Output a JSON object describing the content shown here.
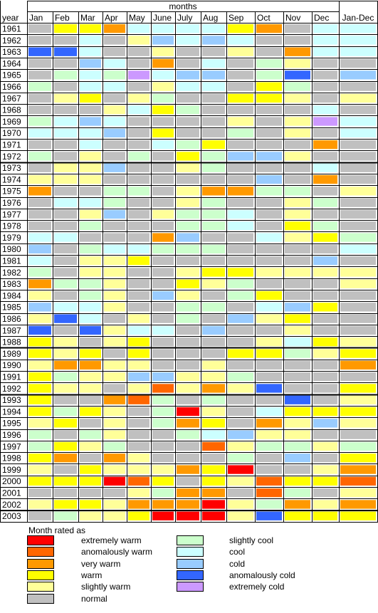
{
  "chart_data": {
    "type": "heatmap",
    "title": "months",
    "row_header": "year",
    "columns": [
      "Jan",
      "Feb",
      "Mar",
      "Apr",
      "May",
      "June",
      "July",
      "Aug",
      "Sep",
      "Oct",
      "Nov",
      "Dec",
      "Jan-Dec"
    ],
    "colors": {
      "EW": "#ff0000",
      "AW": "#ff6600",
      "VW": "#ff9900",
      "W": "#ffff00",
      "SW": "#ffff99",
      "N": "#c0c0c0",
      "SC": "#ccffcc",
      "C": "#ccffff",
      "CD": "#99ccff",
      "AC": "#3366ff",
      "EC": "#cc99ff"
    },
    "rows": [
      {
        "year": "1961",
        "values": [
          "N",
          "W",
          "W",
          "VW",
          "C",
          "C",
          "C",
          "C",
          "W",
          "VW",
          "N",
          "C",
          "C"
        ]
      },
      {
        "year": "1962",
        "values": [
          "N",
          "N",
          "C",
          "N",
          "SW",
          "CD",
          "C",
          "CD",
          "C",
          "N",
          "N",
          "C",
          "C"
        ]
      },
      {
        "year": "1963",
        "values": [
          "AC",
          "AC",
          "C",
          "N",
          "N",
          "SW",
          "N",
          "N",
          "SW",
          "N",
          "VW",
          "C",
          "C"
        ]
      },
      {
        "year": "1964",
        "values": [
          "N",
          "N",
          "CD",
          "C",
          "N",
          "VW",
          "N",
          "C",
          "N",
          "SC",
          "SW",
          "N",
          "N"
        ]
      },
      {
        "year": "1965",
        "values": [
          "N",
          "SC",
          "C",
          "SC",
          "EC",
          "C",
          "CD",
          "CD",
          "N",
          "SC",
          "AC",
          "N",
          "CD"
        ]
      },
      {
        "year": "1966",
        "values": [
          "SC",
          "N",
          "C",
          "C",
          "N",
          "SW",
          "C",
          "C",
          "N",
          "W",
          "SC",
          "N",
          "N"
        ]
      },
      {
        "year": "1967",
        "values": [
          "N",
          "SW",
          "W",
          "N",
          "SW",
          "SC",
          "N",
          "N",
          "W",
          "W",
          "SW",
          "N",
          "SW"
        ]
      },
      {
        "year": "1968",
        "values": [
          "N",
          "N",
          "N",
          "SW",
          "C",
          "W",
          "SC",
          "N",
          "N",
          "N",
          "N",
          "C",
          "N"
        ]
      },
      {
        "year": "1969",
        "values": [
          "SC",
          "C",
          "CD",
          "C",
          "N",
          "N",
          "N",
          "N",
          "SW",
          "N",
          "SW",
          "EC",
          "C"
        ]
      },
      {
        "year": "1970",
        "values": [
          "C",
          "C",
          "C",
          "CD",
          "N",
          "W",
          "N",
          "N",
          "SC",
          "N",
          "SW",
          "N",
          "C"
        ]
      },
      {
        "year": "1971",
        "values": [
          "N",
          "N",
          "C",
          "N",
          "N",
          "C",
          "SC",
          "W",
          "N",
          "N",
          "N",
          "VW",
          "N"
        ]
      },
      {
        "year": "1972",
        "values": [
          "SC",
          "N",
          "SW",
          "N",
          "SC",
          "N",
          "W",
          "SC",
          "CD",
          "CD",
          "SW",
          "N",
          "N"
        ]
      },
      {
        "year": "1973",
        "values": [
          "N",
          "SW",
          "SW",
          "CD",
          "N",
          "N",
          "SW",
          "SC",
          "N",
          "N",
          "N",
          "C",
          "N"
        ]
      },
      {
        "year": "1974",
        "values": [
          "SW",
          "SW",
          "SW",
          "N",
          "N",
          "N",
          "N",
          "N",
          "N",
          "CD",
          "N",
          "VW",
          "N"
        ]
      },
      {
        "year": "1975",
        "values": [
          "VW",
          "N",
          "N",
          "SC",
          "SC",
          "N",
          "SW",
          "VW",
          "VW",
          "SC",
          "SC",
          "N",
          "SW"
        ]
      },
      {
        "year": "1976",
        "values": [
          "N",
          "C",
          "C",
          "SC",
          "N",
          "N",
          "SW",
          "SC",
          "N",
          "N",
          "SW",
          "SC",
          "N"
        ]
      },
      {
        "year": "1977",
        "values": [
          "N",
          "N",
          "SW",
          "CD",
          "N",
          "SW",
          "SC",
          "SC",
          "C",
          "N",
          "SW",
          "N",
          "N"
        ]
      },
      {
        "year": "1978",
        "values": [
          "N",
          "N",
          "SC",
          "N",
          "N",
          "N",
          "SC",
          "SC",
          "C",
          "N",
          "W",
          "SC",
          "N"
        ]
      },
      {
        "year": "1979",
        "values": [
          "C",
          "C",
          "N",
          "N",
          "N",
          "VW",
          "CD",
          "N",
          "N",
          "C",
          "SW",
          "W",
          "SC"
        ]
      },
      {
        "year": "1980",
        "values": [
          "CD",
          "N",
          "SC",
          "C",
          "C",
          "SC",
          "SC",
          "SC",
          "N",
          "N",
          "N",
          "N",
          "C"
        ]
      },
      {
        "year": "1981",
        "values": [
          "C",
          "N",
          "SW",
          "SW",
          "W",
          "N",
          "N",
          "N",
          "N",
          "N",
          "N",
          "CD",
          "N"
        ]
      },
      {
        "year": "1982",
        "values": [
          "SC",
          "N",
          "SW",
          "SW",
          "N",
          "N",
          "SW",
          "W",
          "W",
          "SW",
          "SW",
          "SW",
          "SW"
        ]
      },
      {
        "year": "1983",
        "values": [
          "VW",
          "SC",
          "SC",
          "SW",
          "N",
          "N",
          "W",
          "SW",
          "SC",
          "N",
          "N",
          "N",
          "SW"
        ]
      },
      {
        "year": "1984",
        "values": [
          "SW",
          "N",
          "SC",
          "SW",
          "N",
          "CD",
          "SW",
          "N",
          "SC",
          "W",
          "N",
          "N",
          "N"
        ]
      },
      {
        "year": "1985",
        "values": [
          "CD",
          "C",
          "C",
          "SW",
          "N",
          "N",
          "SC",
          "SC",
          "N",
          "C",
          "CD",
          "W",
          "N"
        ]
      },
      {
        "year": "1986",
        "values": [
          "SW",
          "AC",
          "C",
          "N",
          "SW",
          "N",
          "SC",
          "N",
          "CD",
          "SW",
          "W",
          "N",
          "N"
        ]
      },
      {
        "year": "1987",
        "values": [
          "AC",
          "N",
          "AC",
          "SW",
          "C",
          "C",
          "N",
          "CD",
          "N",
          "N",
          "SW",
          "N",
          "N"
        ]
      },
      {
        "year": "1988",
        "values": [
          "W",
          "SW",
          "N",
          "SW",
          "W",
          "N",
          "N",
          "N",
          "N",
          "SW",
          "C",
          "W",
          "SW"
        ]
      },
      {
        "year": "1989",
        "values": [
          "W",
          "SW",
          "W",
          "N",
          "W",
          "N",
          "N",
          "N",
          "W",
          "W",
          "SC",
          "SW",
          "W"
        ]
      },
      {
        "year": "1990",
        "values": [
          "SW",
          "VW",
          "VW",
          "SW",
          "SW",
          "N",
          "N",
          "SW",
          "N",
          "N",
          "N",
          "N",
          "VW"
        ]
      },
      {
        "year": "1991",
        "values": [
          "W",
          "SC",
          "SW",
          "SW",
          "CD",
          "CD",
          "SW",
          "SW",
          "SC",
          "N",
          "N",
          "N",
          "N"
        ]
      },
      {
        "year": "1992",
        "values": [
          "W",
          "SW",
          "SW",
          "N",
          "SW",
          "AW",
          "SW",
          "VW",
          "SW",
          "AC",
          "N",
          "N",
          "W"
        ]
      },
      {
        "year": "1993",
        "values": [
          "W",
          "N",
          "N",
          "VW",
          "AW",
          "SC",
          "N",
          "SC",
          "N",
          "N",
          "AC",
          "N",
          "SW"
        ]
      },
      {
        "year": "1994",
        "values": [
          "W",
          "SC",
          "W",
          "SW",
          "N",
          "SC",
          "EW",
          "SW",
          "N",
          "C",
          "W",
          "W",
          "W"
        ]
      },
      {
        "year": "1995",
        "values": [
          "SW",
          "W",
          "N",
          "SW",
          "N",
          "SC",
          "VW",
          "W",
          "N",
          "VW",
          "SW",
          "CD",
          "SW"
        ]
      },
      {
        "year": "1996",
        "values": [
          "SC",
          "N",
          "SC",
          "SW",
          "N",
          "N",
          "SC",
          "C",
          "CD",
          "SW",
          "SW",
          "N",
          "N"
        ]
      },
      {
        "year": "1997",
        "values": [
          "SC",
          "W",
          "SW",
          "SC",
          "N",
          "N",
          "N",
          "AW",
          "SW",
          "SC",
          "SC",
          "SW",
          "SC"
        ]
      },
      {
        "year": "1998",
        "values": [
          "W",
          "VW",
          "N",
          "VW",
          "SW",
          "N",
          "N",
          "N",
          "SC",
          "N",
          "CD",
          "N",
          "W"
        ]
      },
      {
        "year": "1999",
        "values": [
          "SW",
          "N",
          "W",
          "SW",
          "SW",
          "SW",
          "VW",
          "W",
          "EW",
          "N",
          "N",
          "SW",
          "VW"
        ]
      },
      {
        "year": "2000",
        "values": [
          "W",
          "W",
          "W",
          "EW",
          "AW",
          "W",
          "N",
          "W",
          "SW",
          "AW",
          "W",
          "W",
          "AW"
        ]
      },
      {
        "year": "2001",
        "values": [
          "N",
          "N",
          "N",
          "N",
          "SW",
          "SC",
          "VW",
          "VW",
          "N",
          "AW",
          "SC",
          "N",
          "SW"
        ]
      },
      {
        "year": "2002",
        "values": [
          "SW",
          "W",
          "W",
          "SW",
          "VW",
          "VW",
          "VW",
          "EW",
          "SW",
          "SC",
          "VW",
          "SW",
          "VW"
        ]
      },
      {
        "year": "2003",
        "values": [
          "N",
          "SC",
          "SW",
          "SW",
          "W",
          "EW",
          "EW",
          "EW",
          "SW",
          "AC",
          "W",
          "W",
          "W"
        ]
      }
    ]
  },
  "legend": {
    "title": "Month rated as",
    "items": [
      {
        "key": "EW",
        "label": "extremely warm"
      },
      {
        "key": "AW",
        "label": "anomalously warm"
      },
      {
        "key": "VW",
        "label": "very warm"
      },
      {
        "key": "W",
        "label": "warm"
      },
      {
        "key": "SW",
        "label": "slightly warm"
      },
      {
        "key": "N",
        "label": "normal"
      },
      {
        "key": "SC",
        "label": "slightly cool"
      },
      {
        "key": "C",
        "label": "cool"
      },
      {
        "key": "CD",
        "label": "cold"
      },
      {
        "key": "AC",
        "label": "anomalously cold"
      },
      {
        "key": "EC",
        "label": "extremely cold"
      }
    ]
  }
}
